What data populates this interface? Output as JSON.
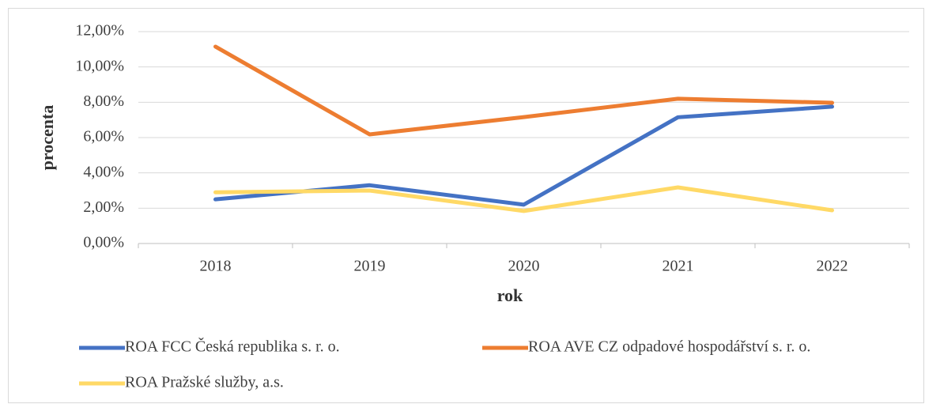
{
  "chart_data": {
    "type": "line",
    "x_label": "rok",
    "y_label": "procenta",
    "categories": [
      "2018",
      "2019",
      "2020",
      "2021",
      "2022"
    ],
    "series": [
      {
        "name": "ROA FCC Česká republika s. r. o.",
        "color": "#4472c4",
        "values": [
          2.5,
          3.3,
          2.2,
          7.15,
          7.75
        ]
      },
      {
        "name": "ROA AVE CZ odpadové hospodářství s. r. o.",
        "color": "#ed7d31",
        "values": [
          11.15,
          6.18,
          7.16,
          8.2,
          7.97
        ]
      },
      {
        "name": "ROA Pražské služby, a.s.",
        "color": "#ffd966",
        "values": [
          2.9,
          3.0,
          1.84,
          3.18,
          1.88
        ]
      }
    ],
    "ylim": [
      0,
      12
    ],
    "yticks": [
      {
        "value": 0,
        "label": "0,00%"
      },
      {
        "value": 2,
        "label": "2,00%"
      },
      {
        "value": 4,
        "label": "4,00%"
      },
      {
        "value": 6,
        "label": "6,00%"
      },
      {
        "value": 8,
        "label": "8,00%"
      },
      {
        "value": 10,
        "label": "10,00%"
      },
      {
        "value": 12,
        "label": "12,00%"
      }
    ],
    "grid": true,
    "legend": "bottom"
  }
}
